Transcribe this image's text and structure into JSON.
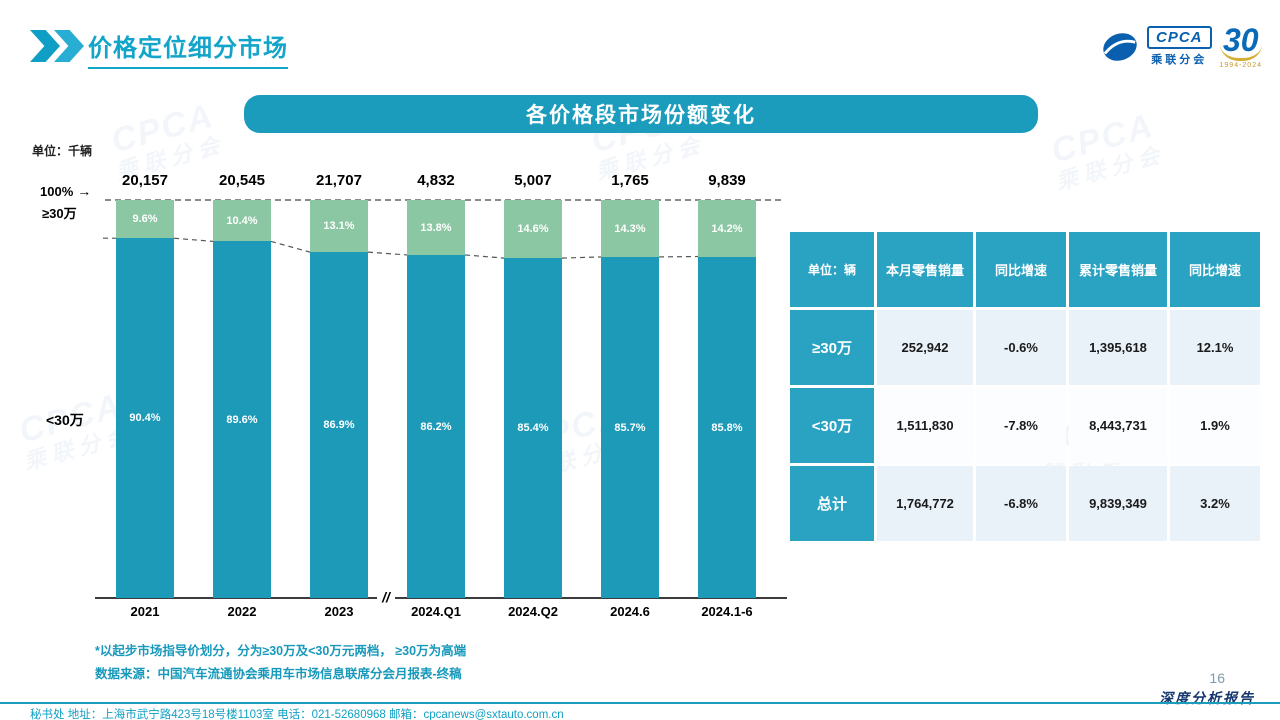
{
  "page": {
    "title": "价格定位细分市场",
    "banner": "各价格段市场份额变化",
    "unit_label": "单位：千辆",
    "notes": [
      "*以起步市场指导价划分，分为≥30万及<30万元两档， ≥30万为高端",
      "数据来源：中国汽车流通协会乘用车市场信息联席分会月报表-终稿"
    ],
    "page_number": "16",
    "report_label": "深度分析报告",
    "footer": "秘书处   地址：上海市武宁路423号18号楼1103室   电话：021-52680968    邮箱：cpcanews@sxtauto.com.cn"
  },
  "logo": {
    "cpca": "CPCA",
    "sub": "乘联分会",
    "anniversary": "30",
    "years": "1994-2024"
  },
  "watermark": {
    "line1": "CPCA",
    "line2": "乘联分会"
  },
  "chart_data": {
    "type": "bar",
    "stacked": true,
    "title": "各价格段市场份额变化",
    "unit": "千辆",
    "categories": [
      "2021",
      "2022",
      "2023",
      "2024.Q1",
      "2024.Q2",
      "2024.6",
      "2024.1-6"
    ],
    "totals": [
      "20,157",
      "20,545",
      "21,707",
      "4,832",
      "5,007",
      "1,765",
      "9,839"
    ],
    "series": [
      {
        "name": "≥30万",
        "color": "#8cc7a4",
        "values": [
          9.6,
          10.4,
          13.1,
          13.8,
          14.6,
          14.3,
          14.2
        ]
      },
      {
        "name": "<30万",
        "color": "#1d9ab8",
        "values": [
          90.4,
          89.6,
          86.9,
          86.2,
          85.4,
          85.7,
          85.8
        ]
      }
    ],
    "axis_labels": {
      "top": "100%",
      "upper": "≥30万",
      "lower": "<30万"
    },
    "break_symbol": "//",
    "ylim": [
      0,
      100
    ],
    "grid": false,
    "legend": "none"
  },
  "table": {
    "headers": [
      "单位：辆",
      "本月零售销量",
      "同比增速",
      "累计零售销量",
      "同比增速"
    ],
    "rows": [
      {
        "label": "≥30万",
        "cells": [
          "252,942",
          "-0.6%",
          "1,395,618",
          "12.1%"
        ]
      },
      {
        "label": "<30万",
        "cells": [
          "1,511,830",
          "-7.8%",
          "8,443,731",
          "1.9%"
        ]
      },
      {
        "label": "总计",
        "cells": [
          "1,764,772",
          "-6.8%",
          "9,839,349",
          "3.2%"
        ]
      }
    ]
  }
}
